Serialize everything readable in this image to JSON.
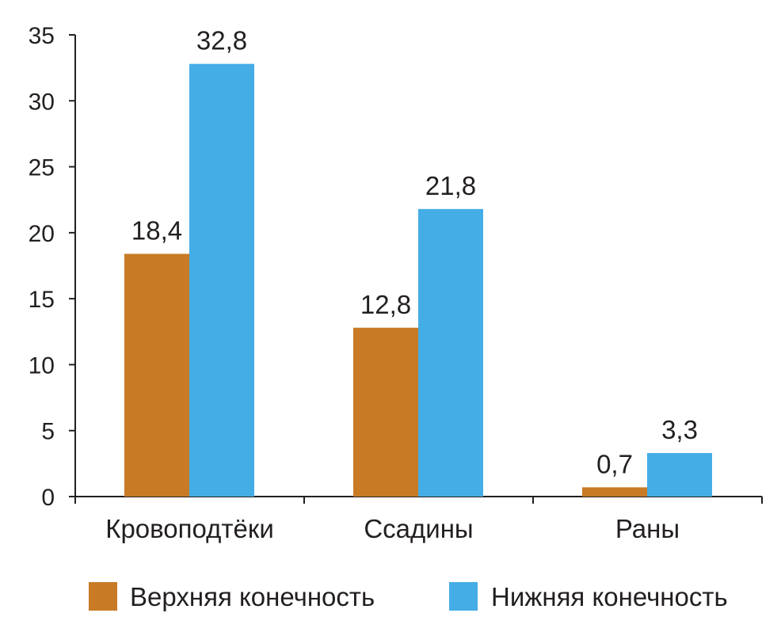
{
  "chart_data": {
    "type": "bar",
    "categories": [
      "Кровоподтёки",
      "Ссадины",
      "Раны"
    ],
    "series": [
      {
        "name": "Верхняя конечность",
        "values": [
          18.4,
          12.8,
          0.7
        ],
        "labels": [
          "18,4",
          "12,8",
          "0,7"
        ],
        "color": "#c87a25"
      },
      {
        "name": "Нижняя конечность",
        "values": [
          32.8,
          21.8,
          3.3
        ],
        "labels": [
          "32,8",
          "21,8",
          "3,3"
        ],
        "color": "#45ade6"
      }
    ],
    "ylim": [
      0,
      35
    ],
    "yticks": [
      "0",
      "5",
      "10",
      "15",
      "20",
      "25",
      "30",
      "35"
    ],
    "grid": false,
    "legend_position": "bottom"
  }
}
